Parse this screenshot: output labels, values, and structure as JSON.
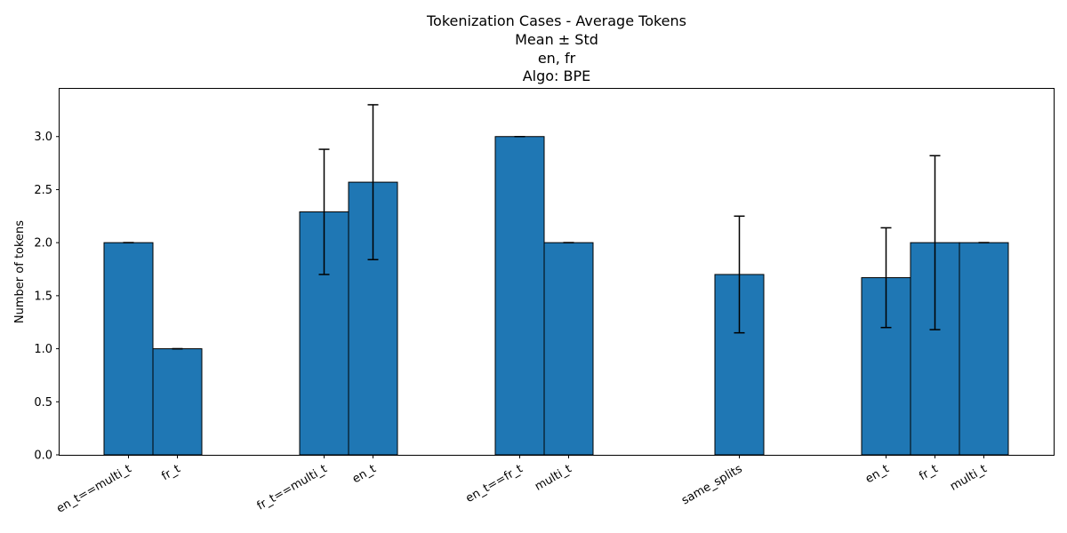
{
  "chart_data": {
    "type": "bar",
    "title_lines": [
      "Tokenization Cases - Average Tokens",
      "Mean ± Std",
      "en, fr",
      "Algo: BPE"
    ],
    "xlabel": "",
    "ylabel": "Number of tokens",
    "ylim": [
      0,
      3.45
    ],
    "yticks": [
      "0.0",
      "0.5",
      "1.0",
      "1.5",
      "2.0",
      "2.5",
      "3.0"
    ],
    "grid": false,
    "bar_color": "#1f77b4",
    "edge_color": "#000000",
    "bars": [
      {
        "group": 0,
        "label": "en_t==multi_t",
        "mean": 2.0,
        "std": 0.0
      },
      {
        "group": 0,
        "label": "fr_t",
        "mean": 1.0,
        "std": 0.0
      },
      {
        "group": 1,
        "label": "fr_t==multi_t",
        "mean": 2.29,
        "std": 0.59
      },
      {
        "group": 1,
        "label": "en_t",
        "mean": 2.57,
        "std": 0.73
      },
      {
        "group": 2,
        "label": "en_t==fr_t",
        "mean": 3.0,
        "std": 0.0
      },
      {
        "group": 2,
        "label": "multi_t",
        "mean": 2.0,
        "std": 0.0
      },
      {
        "group": 3,
        "label": "same_splits",
        "mean": 1.7,
        "std": 0.55
      },
      {
        "group": 4,
        "label": "en_t",
        "mean": 1.67,
        "std": 0.47
      },
      {
        "group": 4,
        "label": "fr_t",
        "mean": 2.0,
        "std": 0.82
      },
      {
        "group": 4,
        "label": "multi_t",
        "mean": 2.0,
        "std": 0.0
      }
    ]
  }
}
